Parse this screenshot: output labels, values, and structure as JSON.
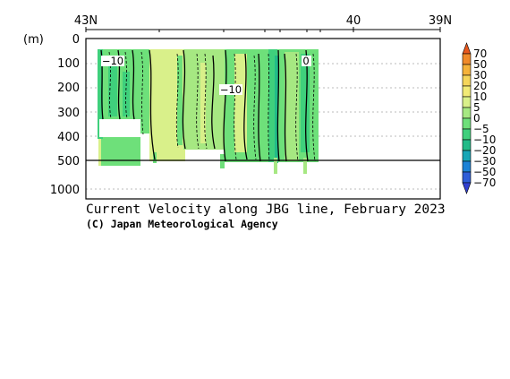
{
  "chart_data": {
    "type": "heatmap",
    "title": "Current Velocity along JBG line, February 2023",
    "credit": "(C) Japan Meteorological Agency",
    "x_tick_labels": [
      "43N",
      "40",
      "39N"
    ],
    "y_unit_label": "(m)",
    "y_tick_labels": [
      "0",
      "100",
      "200",
      "300",
      "400",
      "500",
      "1000"
    ],
    "y_axis": "depth, 0 m at top; linear to 500 m, compressed 500-1000 m",
    "colorbar_labels": [
      "70",
      "50",
      "30",
      "20",
      "10",
      "5",
      "0",
      "−5",
      "−10",
      "−20",
      "−30",
      "−50",
      "−70"
    ],
    "colorbar_colors": [
      "#e8581e",
      "#f08a2a",
      "#f5b23a",
      "#f5d55a",
      "#f1ea76",
      "#d9f08a",
      "#a6e882",
      "#6ee07a",
      "#3fd07c",
      "#22bb88",
      "#17a6b6",
      "#1c82d6",
      "#2f5ed8",
      "#3240d0"
    ],
    "contour_labels": [
      "−10",
      "−10",
      "0"
    ],
    "reference_depth": 500,
    "grid": "dotted horizontal lines at labeled depths"
  }
}
